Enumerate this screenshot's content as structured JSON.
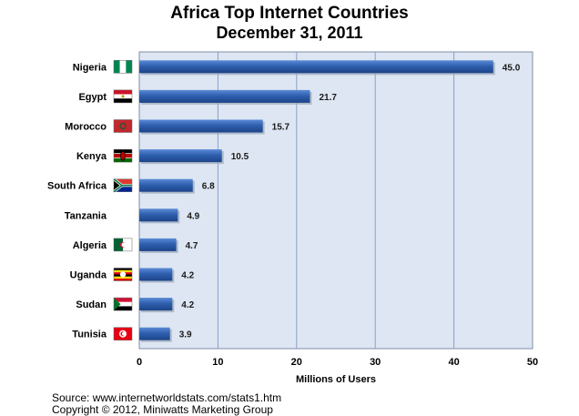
{
  "title": "Africa Top Internet Countries",
  "subtitle": "December 31, 2011",
  "source": "Source: www.internetworldstats.com/stats1.htm",
  "copyright": "Copyright © 2012, Miniwatts Marketing Group",
  "colors": {
    "bar": "#2e5fae",
    "bar_light": "#5b8ad6",
    "plot_bg": "#dde6f2",
    "grid": "#8aa0c8"
  },
  "chart_data": {
    "type": "bar",
    "orientation": "horizontal",
    "categories": [
      "Nigeria",
      "Egypt",
      "Morocco",
      "Kenya",
      "South Africa",
      "Tanzania",
      "Algeria",
      "Uganda",
      "Sudan",
      "Tunisia"
    ],
    "flags": [
      "nigeria-flag-icon",
      "egypt-flag-icon",
      "morocco-flag-icon",
      "kenya-flag-icon",
      "south-africa-flag-icon",
      "tanzania-flag-icon",
      "algeria-flag-icon",
      "uganda-flag-icon",
      "sudan-flag-icon",
      "tunisia-flag-icon"
    ],
    "values": [
      45.0,
      21.7,
      15.7,
      10.5,
      6.8,
      4.9,
      4.7,
      4.2,
      4.2,
      3.9
    ],
    "value_labels": [
      "45.0",
      "21.7",
      "15.7",
      "10.5",
      "6.8",
      "4.9",
      "4.7",
      "4.2",
      "4.2",
      "3.9"
    ],
    "xlabel": "Millions of Users",
    "xlim": [
      0,
      50
    ],
    "xticks": [
      0,
      10,
      20,
      30,
      40,
      50
    ],
    "grid": true
  }
}
